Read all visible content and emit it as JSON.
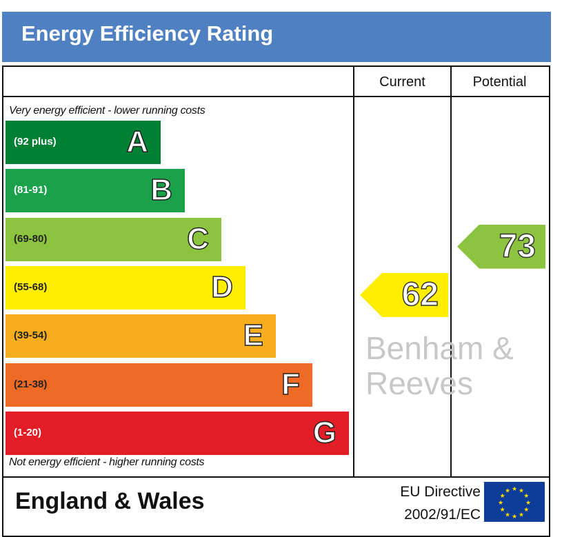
{
  "title": "Energy Efficiency Rating",
  "columns": {
    "current": "Current",
    "potential": "Potential"
  },
  "top_note": "Very energy efficient - lower running costs",
  "bottom_note": "Not energy efficient - higher running costs",
  "region": "England & Wales",
  "directive": {
    "line1": "EU Directive",
    "line2": "2002/91/EC"
  },
  "watermark": "Benham & Reeves",
  "chart_data": {
    "type": "bar",
    "title": "Energy Efficiency Rating",
    "categories": [
      "A",
      "B",
      "C",
      "D",
      "E",
      "F",
      "G"
    ],
    "ranges": [
      "(92 plus)",
      "(81-91)",
      "(69-80)",
      "(55-68)",
      "(39-54)",
      "(21-38)",
      "(1-20)"
    ],
    "colors": [
      "#008034",
      "#1aa14a",
      "#8cc43f",
      "#ffee00",
      "#f6ae1f",
      "#ef6a25",
      "#e21d26"
    ],
    "current": {
      "value": 62,
      "band": "D",
      "color": "#ffee00"
    },
    "potential": {
      "value": 73,
      "band": "C",
      "color": "#8cc43f"
    }
  }
}
